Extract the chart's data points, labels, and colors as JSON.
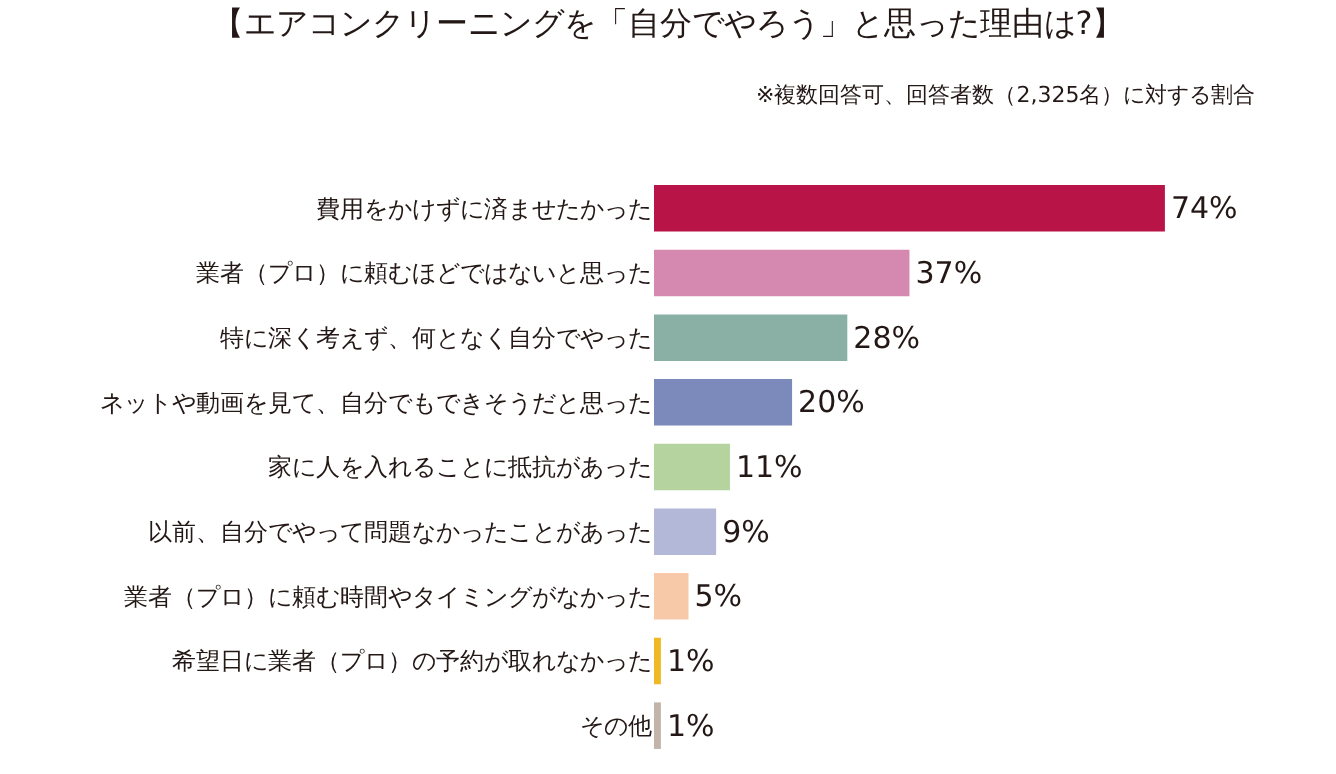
{
  "chart_data": {
    "type": "bar",
    "orientation": "horizontal",
    "title": "【エアコンクリーニングを「自分でやろう」と思った理由は?】",
    "subtitle": "※複数回答可、回答者数（2,325名）に対する割合",
    "categories": [
      "費用をかけずに済ませたかった",
      "業者（プロ）に頼むほどではないと思った",
      "特に深く考えず、何となく自分でやった",
      "ネットや動画を見て、自分でもできそうだと思った",
      "家に人を入れることに抵抗があった",
      "以前、自分でやって問題なかったことがあった",
      "業者（プロ）に頼む時間やタイミングがなかった",
      "希望日に業者（プロ）の予約が取れなかった",
      "その他"
    ],
    "values": [
      74,
      37,
      28,
      20,
      11,
      9,
      5,
      1,
      1
    ],
    "value_labels": [
      "74%",
      "37%",
      "28%",
      "20%",
      "11%",
      "9%",
      "5%",
      "1%",
      "1%"
    ],
    "colors": [
      "#b81447",
      "#d588b0",
      "#8ab0a5",
      "#7b8aba",
      "#b5d39e",
      "#b3b8d8",
      "#f8c9a8",
      "#f0b923",
      "#c2b4a8"
    ]
  }
}
